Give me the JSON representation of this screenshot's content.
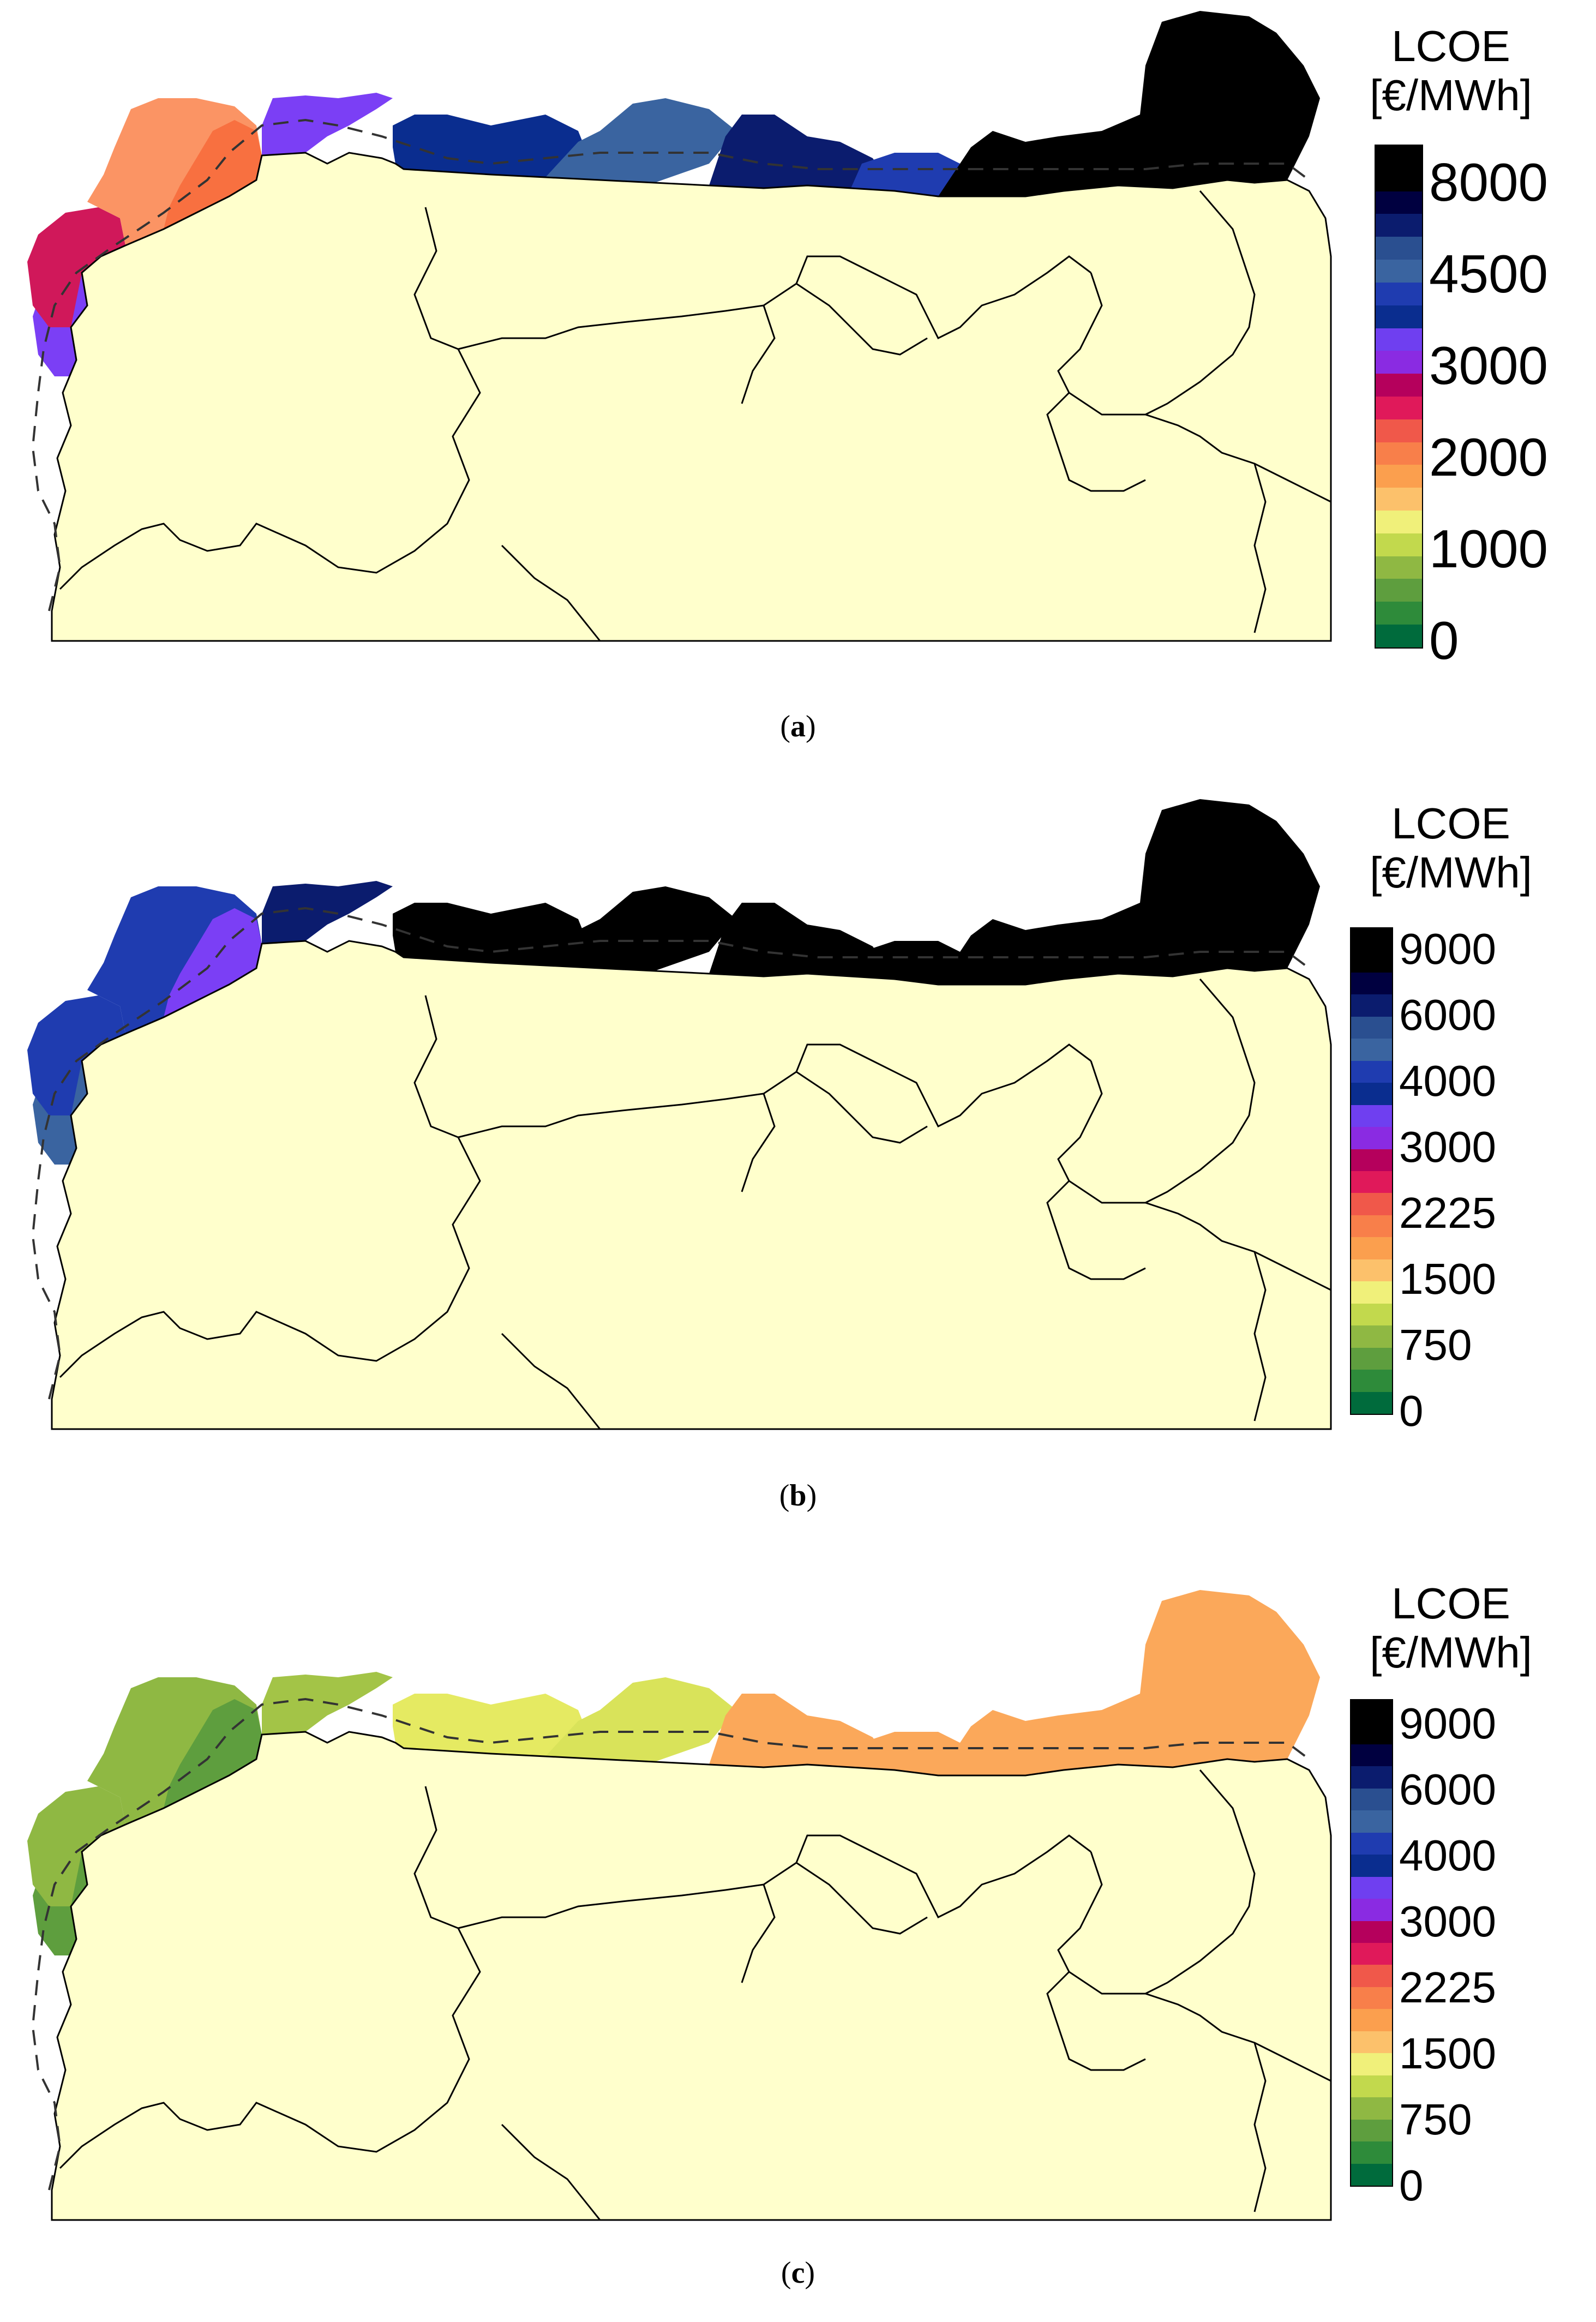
{
  "legend_title_line1": "LCOE",
  "legend_title_line2": "[€/MWh]",
  "palette": [
    "#006b3c",
    "#2e8b3a",
    "#5e9e3e",
    "#8fb843",
    "#c2d94d",
    "#f0f07a",
    "#fcc16b",
    "#fb9f4e",
    "#f87f4a",
    "#f0584a",
    "#e0195a",
    "#b5005c",
    "#8a2be2",
    "#6f3ff0",
    "#1f3cb0",
    "#0a2d8f",
    "#3a64a0",
    "#2a4f90",
    "#0b1c6e",
    "#000040",
    "#000000"
  ],
  "colors": {
    "land": "#ffffcc",
    "coast": "#000000",
    "dashed": "#333333"
  },
  "panels": [
    {
      "id": "a",
      "caption_label": "a",
      "ticks": [
        "8000",
        "4500",
        "3000",
        "2000",
        "1000",
        "0"
      ],
      "zone_colors": {
        "west_lower": "#3a64a0",
        "west_mid": "#1f3cb0",
        "west_upper": "#7b3ff5",
        "west_top": "#d0185a",
        "nw_corner": "#fb9464",
        "nw_inner": "#f87040",
        "north_1": "#7b3ff5",
        "north_2": "#0a2d8f",
        "north_3": "#3a64a0",
        "north_4": "#0b1c6e",
        "north_5": "#1f3cb0",
        "east": "#000000"
      }
    },
    {
      "id": "b",
      "caption_label": "b",
      "ticks": [
        "9000",
        "6000",
        "4000",
        "3000",
        "2225",
        "1500",
        "750",
        "0"
      ],
      "zone_colors": {
        "west_lower": "#000000",
        "west_mid": "#0b1c6e",
        "west_upper": "#3a64a0",
        "west_top": "#1f3cb0",
        "nw_corner": "#1f3cb0",
        "nw_inner": "#7b3ff5",
        "north_1": "#0b1c6e",
        "north_2": "#000000",
        "north_3": "#000000",
        "north_4": "#000000",
        "north_5": "#000000",
        "east": "#000000"
      }
    },
    {
      "id": "c",
      "caption_label": "c",
      "ticks": [
        "9000",
        "6000",
        "4000",
        "3000",
        "2225",
        "1500",
        "750",
        "0"
      ],
      "zone_colors": {
        "west_lower": "#8fb843",
        "west_mid": "#8fb843",
        "west_upper": "#5e9e3e",
        "west_top": "#8fb843",
        "nw_corner": "#8fb843",
        "nw_inner": "#5e9e3e",
        "north_1": "#a3c447",
        "north_2": "#e5ea62",
        "north_3": "#d9e35a",
        "north_4": "#fba85a",
        "north_5": "#fba85a",
        "east": "#fba85a"
      }
    }
  ],
  "legend_a_colors": [
    "#000000",
    "#000000",
    "#000040",
    "#0b1c6e",
    "#2a4f90",
    "#3a64a0",
    "#1f3cb0",
    "#0a2d8f",
    "#6f3ff0",
    "#8a2be2",
    "#b5005c",
    "#e0195a",
    "#f0584a",
    "#f87f4a",
    "#fb9f4e",
    "#fcc16b",
    "#f0f07a",
    "#c2d94d",
    "#8fb843",
    "#5e9e3e",
    "#2e8b3a",
    "#006b3c"
  ],
  "legend_bc_colors": [
    "#000000",
    "#000000",
    "#000040",
    "#0b1c6e",
    "#2a4f90",
    "#3a64a0",
    "#1f3cb0",
    "#0a2d8f",
    "#6f3ff0",
    "#8a2be2",
    "#b5005c",
    "#e0195a",
    "#f0584a",
    "#f87f4a",
    "#fb9f4e",
    "#fcc16b",
    "#f0f07a",
    "#c2d94d",
    "#8fb843",
    "#5e9e3e",
    "#2e8b3a",
    "#006b3c"
  ]
}
